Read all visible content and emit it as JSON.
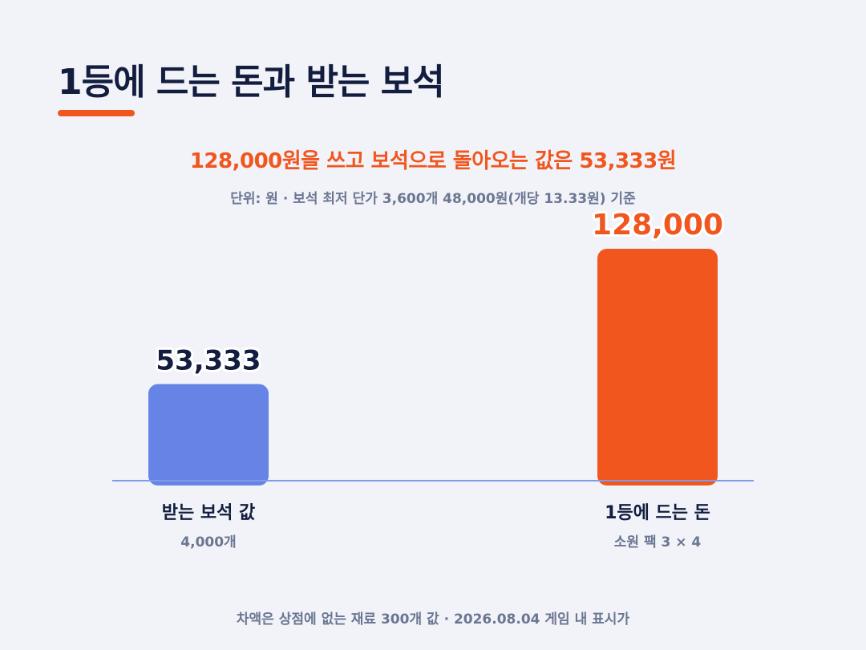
{
  "title": "1등에 드는 돈과 받는 보석",
  "subtitle": "128,000원을 쓰고 보석으로 돌아오는 값은 53,333원",
  "unit_note": "단위: 원 · 보석 최저 단가 3,600개 48,000원(개당 13.33원) 기준",
  "footer": "차액은 상점에 없는 재료 300개 값 · 2026.08.04 게임 내 표시가",
  "colors": {
    "title": "#121d3f",
    "accent": "#f0561e",
    "bar_gems": "#6683e6",
    "bar_cost": "#f0561e",
    "baseline": "#7f9bea",
    "sublabel": "#6b7692"
  },
  "chart_data": {
    "type": "bar",
    "ylim": [
      0,
      128000
    ],
    "grid": false,
    "categories": [
      "받는 보석 값",
      "1등에 드는 돈"
    ],
    "sublabels": [
      "4,000개",
      "소원 팩 3 × 4"
    ],
    "values": [
      53333,
      128000
    ],
    "value_labels": [
      "53,333",
      "128,000"
    ]
  }
}
